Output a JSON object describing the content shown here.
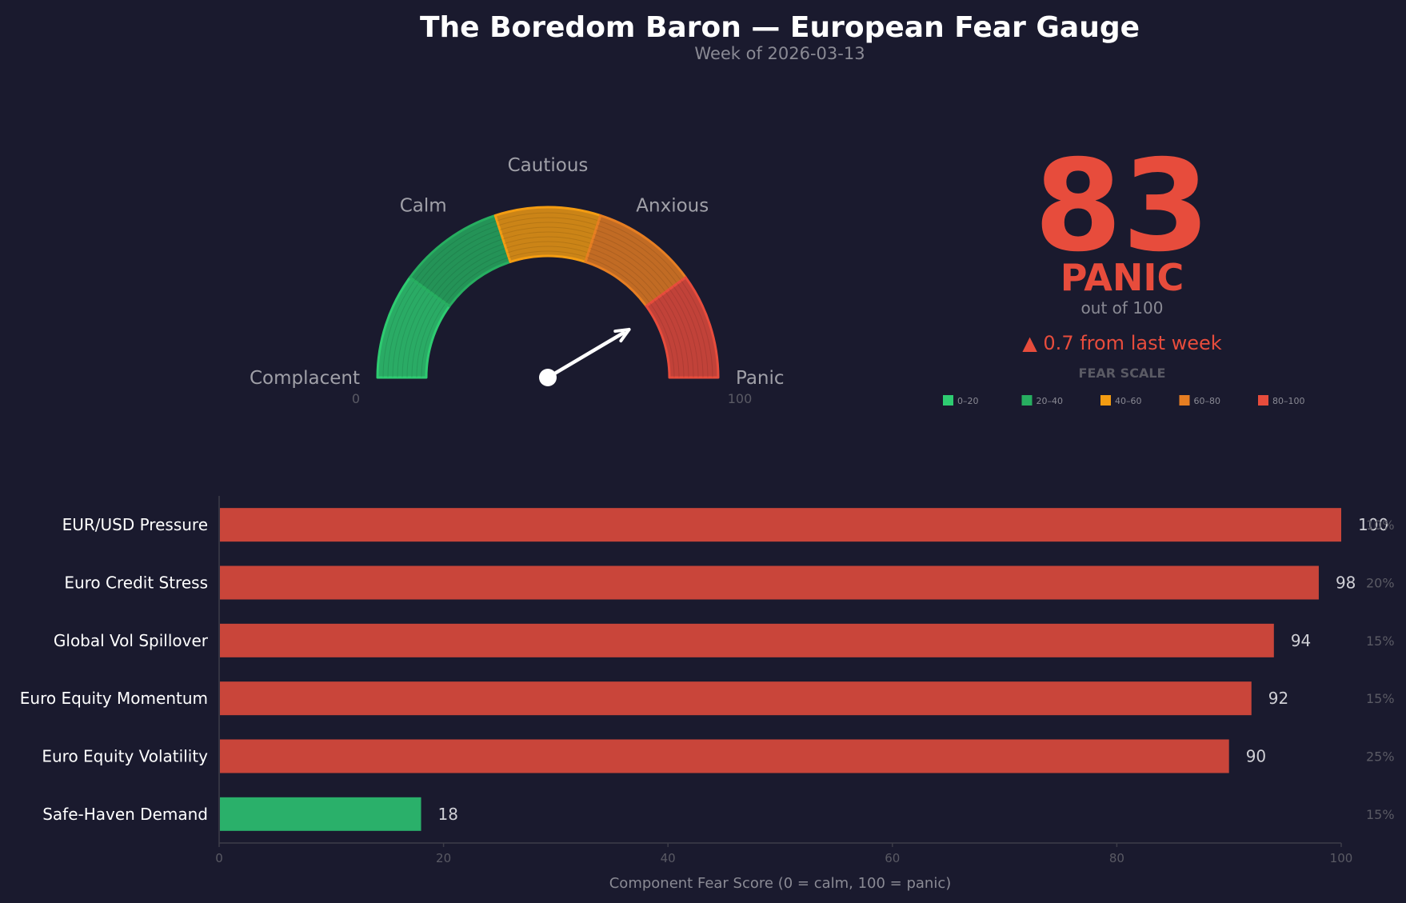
{
  "title": "The Boredom Baron — European Fear Gauge",
  "subtitle": "Week of 2026-03-13",
  "colors": {
    "background": "#1a1a2e",
    "complacent": "#2ecc71",
    "calm": "#27ae60",
    "cautious": "#f39c12",
    "anxious": "#e67e22",
    "panic": "#e74c3c",
    "bar_high": "#c9453a",
    "bar_low": "#2ab06a"
  },
  "gauge": {
    "min_label": "0",
    "max_label": "100",
    "zones": [
      {
        "label": "Complacent",
        "from": 0,
        "to": 20,
        "color": "#2ecc71"
      },
      {
        "label": "Calm",
        "from": 20,
        "to": 40,
        "color": "#27ae60"
      },
      {
        "label": "Cautious",
        "from": 40,
        "to": 60,
        "color": "#f39c12"
      },
      {
        "label": "Anxious",
        "from": 60,
        "to": 80,
        "color": "#e67e22"
      },
      {
        "label": "Panic",
        "from": 80,
        "to": 100,
        "color": "#e74c3c"
      }
    ],
    "needle_value": 83
  },
  "score": {
    "value": "83",
    "level": "PANIC",
    "out_of": "out of 100",
    "change": "▲ 0.7 from last week"
  },
  "fear_scale": {
    "title": "FEAR SCALE",
    "items": [
      {
        "label": "0–20",
        "color": "#2ecc71"
      },
      {
        "label": "20–40",
        "color": "#27ae60"
      },
      {
        "label": "40–60",
        "color": "#f39c12"
      },
      {
        "label": "60–80",
        "color": "#e67e22"
      },
      {
        "label": "80–100",
        "color": "#e74c3c"
      }
    ]
  },
  "chart_data": {
    "type": "bar",
    "orientation": "horizontal",
    "categories": [
      "EUR/USD Pressure",
      "Euro Credit Stress",
      "Global Vol Spillover",
      "Euro Equity Momentum",
      "Euro Equity Volatility",
      "Safe-Haven Demand"
    ],
    "values": [
      100,
      98,
      94,
      92,
      90,
      18
    ],
    "weights": [
      "10%",
      "20%",
      "15%",
      "15%",
      "25%",
      "15%"
    ],
    "xlabel": "Component Fear Score (0 = calm, 100 = panic)",
    "xlim": [
      0,
      100
    ],
    "xticks": [
      0,
      20,
      40,
      60,
      80,
      100
    ],
    "grid": false
  }
}
